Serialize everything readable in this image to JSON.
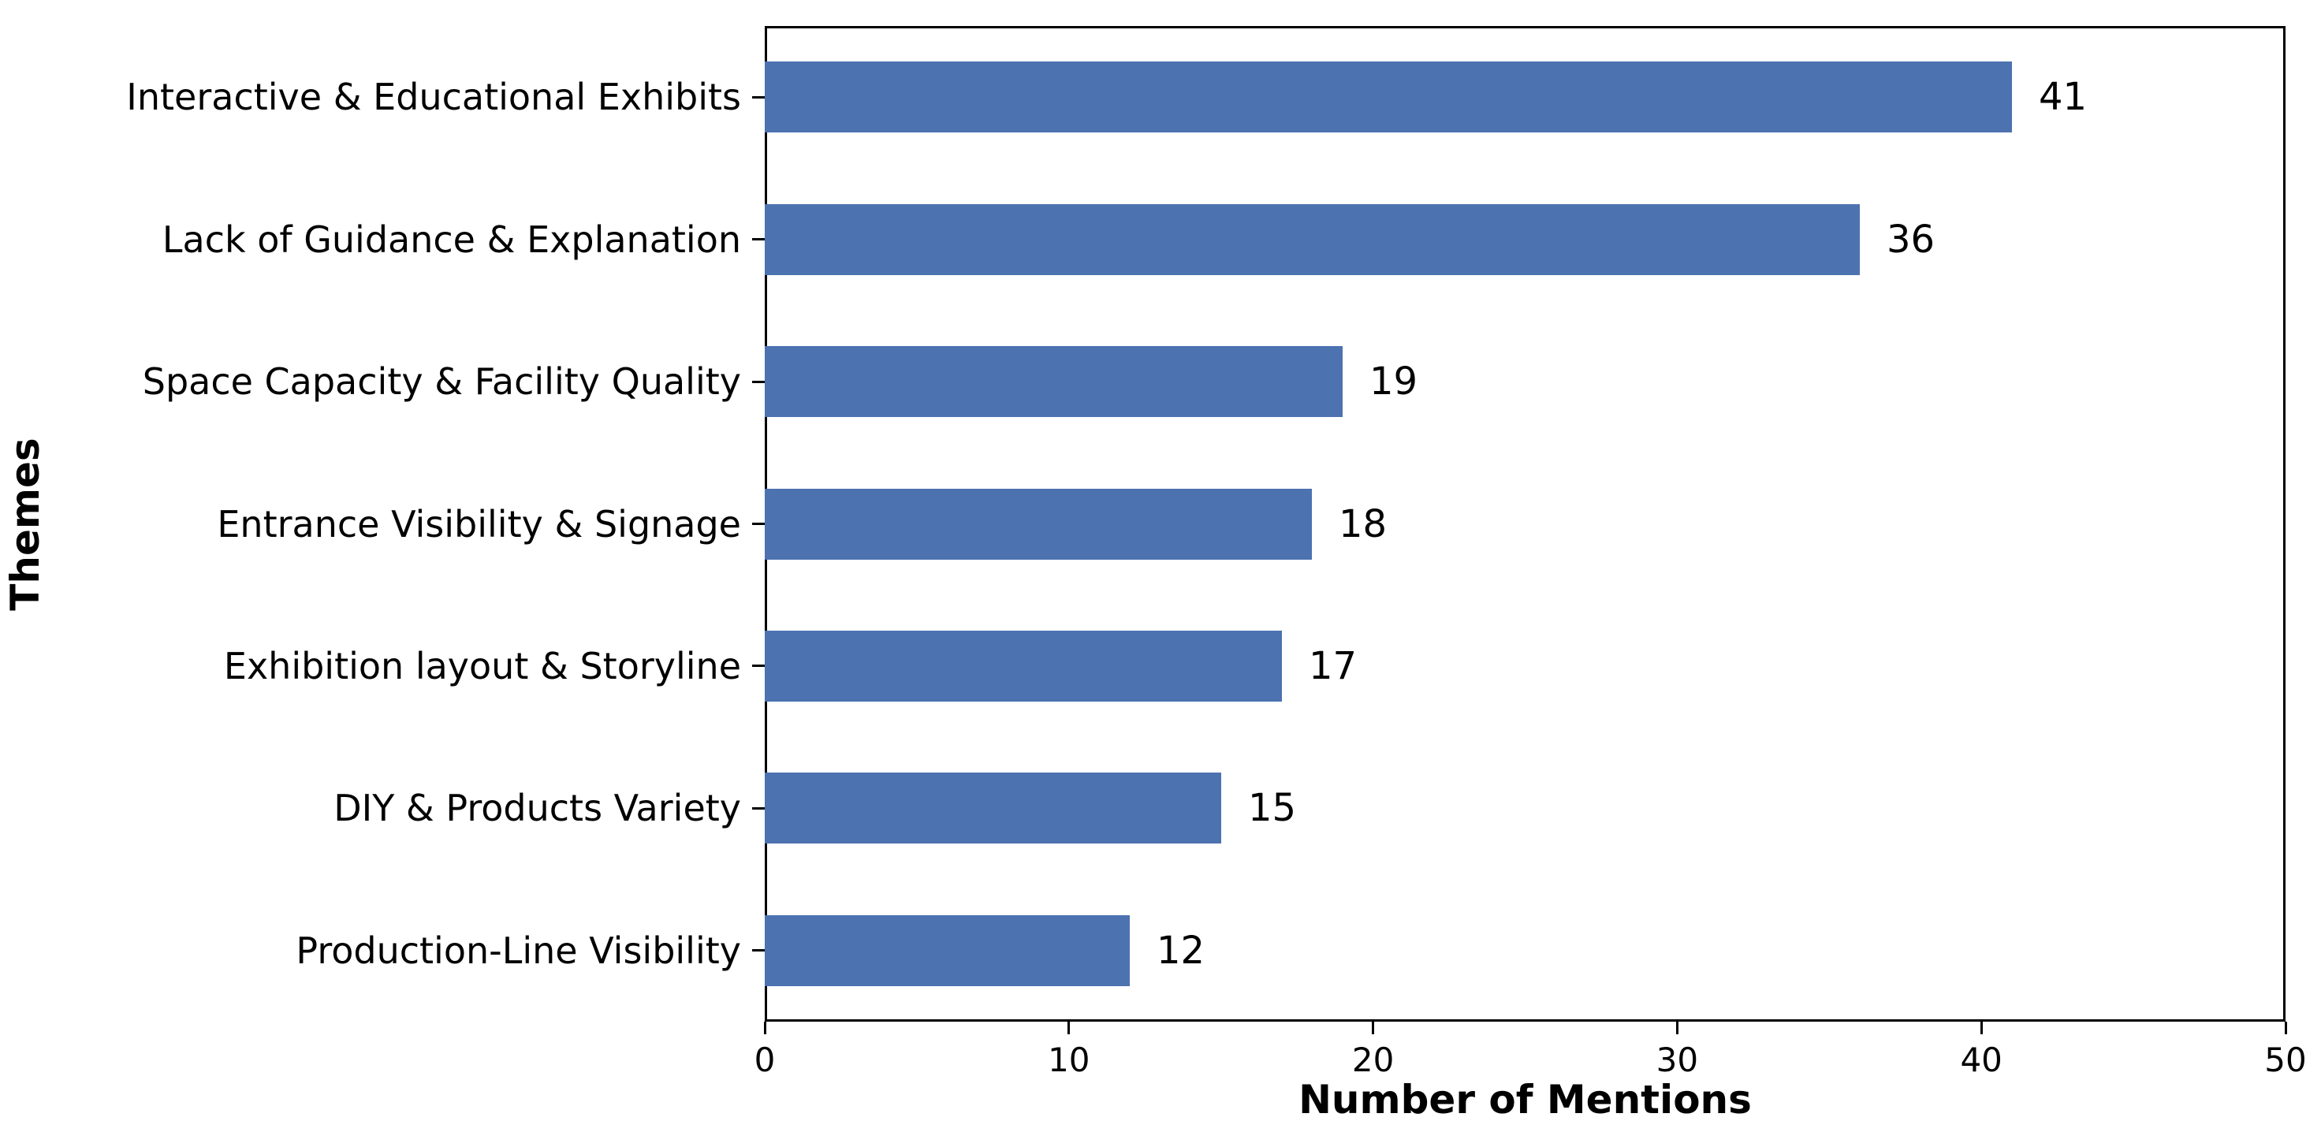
{
  "chart_data": {
    "type": "bar",
    "orientation": "horizontal",
    "title": "",
    "xlabel": "Number of Mentions",
    "ylabel": "Themes",
    "categories": [
      "Interactive & Educational Exhibits",
      "Lack of Guidance & Explanation",
      "Space Capacity & Facility Quality",
      "Entrance Visibility & Signage",
      "Exhibition layout & Storyline",
      "DIY & Products Variety",
      "Production-Line Visibility"
    ],
    "values": [
      41,
      36,
      19,
      18,
      17,
      15,
      12
    ],
    "value_labels": [
      "41",
      "36",
      "19",
      "18",
      "17",
      "15",
      "12"
    ],
    "xlim": [
      0,
      50
    ],
    "xticks": [
      0,
      10,
      20,
      30,
      40,
      50
    ],
    "xtick_labels": [
      "0",
      "10",
      "20",
      "30",
      "40",
      "50"
    ],
    "bar_color": "#4c72b0",
    "axis_color": "#000000",
    "text_color": "#000000",
    "grid": "off",
    "legend": "none"
  }
}
